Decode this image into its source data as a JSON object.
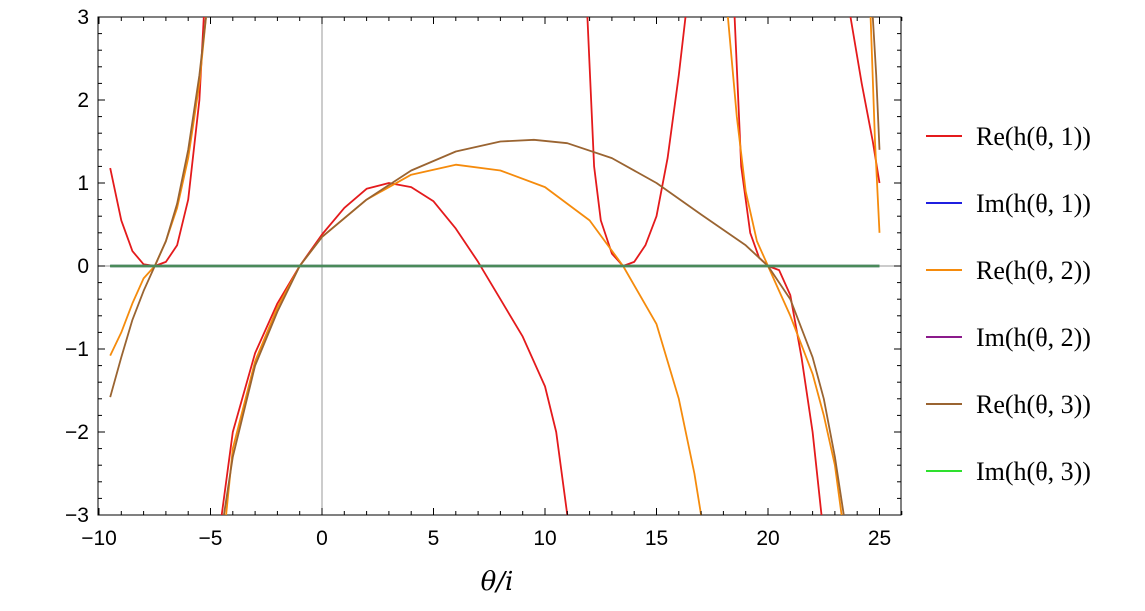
{
  "chart_data": {
    "type": "line",
    "xlabel": "θ/i",
    "ylabel": "",
    "xlim": [
      -10,
      26
    ],
    "ylim": [
      -3,
      3
    ],
    "xticks": [
      -10,
      -5,
      0,
      5,
      10,
      15,
      20,
      25
    ],
    "xtick_labels": [
      "−10",
      "−5",
      "0",
      "5",
      "10",
      "15",
      "20",
      "25"
    ],
    "yticks": [
      -3,
      -2,
      -1,
      0,
      1,
      2,
      3
    ],
    "ytick_labels": [
      "−3",
      "−2",
      "−1",
      "0",
      "1",
      "2",
      "3"
    ],
    "grid": false,
    "legend_position": "right",
    "series": [
      {
        "name": "Re(h(θ, 1))",
        "color": "#e41a1c",
        "segments": [
          [
            [
              -9.5,
              1.18
            ],
            [
              -9.0,
              0.55
            ],
            [
              -8.5,
              0.18
            ],
            [
              -8.0,
              0.02
            ],
            [
              -7.5,
              0.0
            ],
            [
              -7.0,
              0.05
            ],
            [
              -6.5,
              0.25
            ],
            [
              -6.0,
              0.8
            ],
            [
              -5.5,
              2.0
            ],
            [
              -5.3,
              3.0
            ]
          ],
          [
            [
              -4.5,
              -3.0
            ],
            [
              -4.0,
              -2.0
            ],
            [
              -3.0,
              -1.05
            ],
            [
              -2.0,
              -0.45
            ],
            [
              -1.0,
              0.0
            ],
            [
              0.0,
              0.38
            ],
            [
              1.0,
              0.7
            ],
            [
              2.0,
              0.93
            ],
            [
              3.0,
              1.0
            ],
            [
              4.0,
              0.95
            ],
            [
              5.0,
              0.78
            ],
            [
              6.0,
              0.45
            ],
            [
              7.0,
              0.05
            ],
            [
              8.0,
              -0.4
            ],
            [
              9.0,
              -0.85
            ],
            [
              10.0,
              -1.45
            ],
            [
              10.5,
              -2.0
            ],
            [
              11.0,
              -3.0
            ]
          ],
          [
            [
              11.9,
              3.0
            ],
            [
              12.2,
              1.2
            ],
            [
              12.5,
              0.55
            ],
            [
              13.0,
              0.15
            ],
            [
              13.5,
              0.0
            ],
            [
              14.0,
              0.05
            ],
            [
              14.5,
              0.25
            ],
            [
              15.0,
              0.6
            ],
            [
              15.5,
              1.3
            ],
            [
              16.0,
              2.3
            ],
            [
              16.3,
              3.0
            ]
          ],
          [
            [
              18.5,
              3.0
            ],
            [
              18.8,
              1.2
            ],
            [
              19.2,
              0.4
            ],
            [
              19.6,
              0.1
            ],
            [
              20.0,
              0.0
            ],
            [
              20.5,
              -0.05
            ],
            [
              21.0,
              -0.35
            ],
            [
              21.5,
              -1.1
            ],
            [
              22.0,
              -2.0
            ],
            [
              22.4,
              -3.0
            ]
          ],
          [
            [
              23.7,
              3.0
            ],
            [
              24.2,
              2.2
            ],
            [
              24.7,
              1.5
            ],
            [
              25.0,
              1.0
            ]
          ]
        ]
      },
      {
        "name": "Im(h(θ, 1))",
        "color": "#1f1fe0",
        "segments": [
          [
            [
              -9.5,
              0
            ],
            [
              25.0,
              0
            ]
          ]
        ]
      },
      {
        "name": "Re(h(θ, 2))",
        "color": "#f58b0c",
        "segments": [
          [
            [
              -9.5,
              -1.08
            ],
            [
              -9.0,
              -0.8
            ],
            [
              -8.5,
              -0.45
            ],
            [
              -8.0,
              -0.15
            ],
            [
              -7.5,
              0.0
            ],
            [
              -7.0,
              0.3
            ],
            [
              -6.5,
              0.7
            ],
            [
              -6.0,
              1.3
            ],
            [
              -5.5,
              2.2
            ],
            [
              -5.2,
              3.0
            ]
          ],
          [
            [
              -4.3,
              -3.0
            ],
            [
              -4.0,
              -2.2
            ],
            [
              -3.0,
              -1.15
            ],
            [
              -2.0,
              -0.5
            ],
            [
              -1.0,
              0.0
            ],
            [
              0.0,
              0.35
            ],
            [
              2.0,
              0.8
            ],
            [
              4.0,
              1.1
            ],
            [
              6.0,
              1.22
            ],
            [
              8.0,
              1.15
            ],
            [
              10.0,
              0.95
            ],
            [
              12.0,
              0.55
            ],
            [
              13.5,
              0.0
            ],
            [
              15.0,
              -0.7
            ],
            [
              16.0,
              -1.6
            ],
            [
              16.7,
              -2.5
            ],
            [
              17.0,
              -3.0
            ]
          ],
          [
            [
              18.2,
              3.0
            ],
            [
              18.6,
              1.8
            ],
            [
              19.0,
              0.9
            ],
            [
              19.5,
              0.3
            ],
            [
              20.0,
              0.0
            ],
            [
              20.5,
              -0.3
            ],
            [
              21.0,
              -0.6
            ],
            [
              21.5,
              -0.95
            ],
            [
              22.0,
              -1.3
            ],
            [
              22.5,
              -1.8
            ],
            [
              23.0,
              -2.4
            ],
            [
              23.3,
              -3.0
            ]
          ],
          [
            [
              24.6,
              3.0
            ],
            [
              24.8,
              1.5
            ],
            [
              25.0,
              0.4
            ]
          ]
        ]
      },
      {
        "name": "Im(h(θ, 2))",
        "color": "#8b1a8b",
        "segments": [
          [
            [
              -9.5,
              0
            ],
            [
              25.0,
              0
            ]
          ]
        ]
      },
      {
        "name": "Re(h(θ, 3))",
        "color": "#9a6431",
        "segments": [
          [
            [
              -9.5,
              -1.58
            ],
            [
              -9.0,
              -1.1
            ],
            [
              -8.5,
              -0.65
            ],
            [
              -8.0,
              -0.3
            ],
            [
              -7.5,
              0.0
            ],
            [
              -7.0,
              0.3
            ],
            [
              -6.5,
              0.75
            ],
            [
              -6.0,
              1.4
            ],
            [
              -5.5,
              2.3
            ],
            [
              -5.2,
              3.0
            ]
          ],
          [
            [
              -4.4,
              -3.0
            ],
            [
              -4.0,
              -2.3
            ],
            [
              -3.0,
              -1.2
            ],
            [
              -2.0,
              -0.55
            ],
            [
              -1.0,
              0.0
            ],
            [
              0.0,
              0.35
            ],
            [
              2.0,
              0.8
            ],
            [
              4.0,
              1.15
            ],
            [
              6.0,
              1.38
            ],
            [
              8.0,
              1.5
            ],
            [
              9.5,
              1.52
            ],
            [
              11.0,
              1.48
            ],
            [
              13.0,
              1.3
            ],
            [
              15.0,
              1.0
            ],
            [
              17.0,
              0.62
            ],
            [
              19.0,
              0.25
            ],
            [
              20.0,
              0.0
            ],
            [
              21.0,
              -0.4
            ],
            [
              22.0,
              -1.1
            ],
            [
              22.5,
              -1.6
            ],
            [
              23.0,
              -2.3
            ],
            [
              23.4,
              -3.0
            ]
          ],
          [
            [
              24.7,
              3.0
            ],
            [
              24.85,
              2.3
            ],
            [
              25.0,
              1.4
            ]
          ]
        ]
      },
      {
        "name": "Im(h(θ, 3))",
        "color": "#2ee02e",
        "segments": [
          [
            [
              -9.5,
              0
            ],
            [
              25.0,
              0
            ]
          ]
        ]
      }
    ]
  }
}
